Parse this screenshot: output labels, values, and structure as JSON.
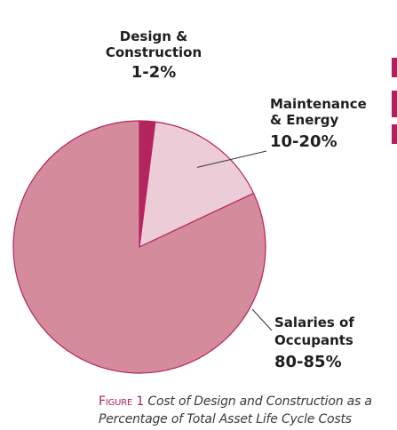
{
  "chart_data": {
    "type": "pie",
    "slices": [
      {
        "name_lines": [
          "Design &",
          "Construction"
        ],
        "value_label": "1-2%",
        "value": 2,
        "color": "#b5245f"
      },
      {
        "name_lines": [
          "Maintenance",
          "& Energy"
        ],
        "value_label": "10-20%",
        "value": 16,
        "color": "#ecccd6"
      },
      {
        "name_lines": [
          "Salaries of",
          "Occupants"
        ],
        "value_label": "80-85%",
        "value": 82,
        "color": "#d48b9c"
      }
    ],
    "slice_stroke": "#b5245f",
    "legend": "none"
  },
  "caption": {
    "figure_label": "Figure 1",
    "text": "Cost of Design and Construction as a Percentage of Total Asset Life Cycle Costs"
  },
  "colors": {
    "accent": "#b0205f"
  }
}
